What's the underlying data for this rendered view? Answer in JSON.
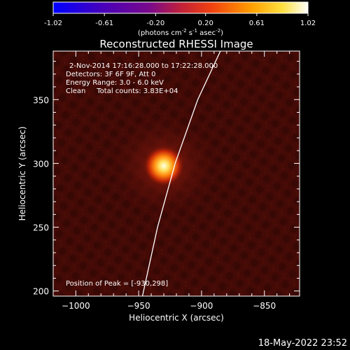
{
  "chart_data": {
    "type": "heatmap",
    "title": "Reconstructed RHESSI Image",
    "colorbar": {
      "ticks": [
        "-1.02",
        "-0.61",
        "-0.20",
        "0.20",
        "0.61",
        "1.02"
      ],
      "range": [
        -1.02,
        1.02
      ],
      "unit_main": "(photons cm",
      "unit_exp1": "-2",
      "unit_mid": " s",
      "unit_exp2": "-1",
      "unit_end": " asec",
      "unit_exp3": "-2",
      "unit_close": ")",
      "colormap": "RHESSI blue-purple-red-yellow-white"
    },
    "xlabel": "Heliocentric X (arcsec)",
    "ylabel": "Heliocentric Y (arcsec)",
    "xlim": [
      -1018,
      -822
    ],
    "ylim": [
      196,
      388
    ],
    "xticks": [
      -1000,
      -950,
      -900,
      -850
    ],
    "xtick_labels": [
      "−1000",
      "−950",
      "−900",
      "−850"
    ],
    "yticks": [
      200,
      250,
      300,
      350
    ],
    "ytick_labels": [
      "200",
      "250",
      "300",
      "350"
    ],
    "source": {
      "x": -930,
      "y": 298
    },
    "annotations": [
      "2-Nov-2014 17:16:28.000 to 17:22:28.000",
      "Detectors: 3F 6F 9F, Att 0",
      "Energy Range: 3.0 - 6.0 keV",
      "Clean     Total counts: 3.83E+04"
    ],
    "peak_label": "Position of Peak = [-930,298]",
    "limb_curve": [
      [
        -947,
        196
      ],
      [
        -935,
        250
      ],
      [
        -921,
        300
      ],
      [
        -903,
        350
      ],
      [
        -885,
        388
      ]
    ],
    "timestamp": "18-May-2022 23:52"
  }
}
